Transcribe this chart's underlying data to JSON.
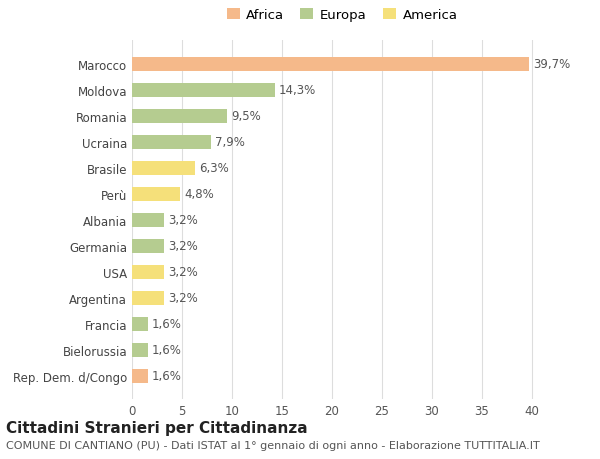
{
  "categories": [
    "Rep. Dem. d/Congo",
    "Bielorussia",
    "Francia",
    "Argentina",
    "USA",
    "Germania",
    "Albania",
    "Perù",
    "Brasile",
    "Ucraina",
    "Romania",
    "Moldova",
    "Marocco"
  ],
  "values": [
    1.6,
    1.6,
    1.6,
    3.2,
    3.2,
    3.2,
    3.2,
    4.8,
    6.3,
    7.9,
    9.5,
    14.3,
    39.7
  ],
  "labels": [
    "1,6%",
    "1,6%",
    "1,6%",
    "3,2%",
    "3,2%",
    "3,2%",
    "3,2%",
    "4,8%",
    "6,3%",
    "7,9%",
    "9,5%",
    "14,3%",
    "39,7%"
  ],
  "colors": [
    "#f5b98a",
    "#b5cc90",
    "#b5cc90",
    "#f5e07a",
    "#f5e07a",
    "#b5cc90",
    "#b5cc90",
    "#f5e07a",
    "#f5e07a",
    "#b5cc90",
    "#b5cc90",
    "#b5cc90",
    "#f5b98a"
  ],
  "legend_labels": [
    "Africa",
    "Europa",
    "America"
  ],
  "legend_colors": [
    "#f5b98a",
    "#b5cc90",
    "#f5e07a"
  ],
  "title": "Cittadini Stranieri per Cittadinanza",
  "subtitle": "COMUNE DI CANTIANO (PU) - Dati ISTAT al 1° gennaio di ogni anno - Elaborazione TUTTITALIA.IT",
  "xlim": [
    0,
    42
  ],
  "xticks": [
    0,
    5,
    10,
    15,
    20,
    25,
    30,
    35,
    40
  ],
  "background_color": "#ffffff",
  "grid_color": "#dddddd",
  "bar_height": 0.55,
  "label_fontsize": 8.5,
  "tick_fontsize": 8.5,
  "legend_fontsize": 9.5,
  "title_fontsize": 11,
  "subtitle_fontsize": 8
}
